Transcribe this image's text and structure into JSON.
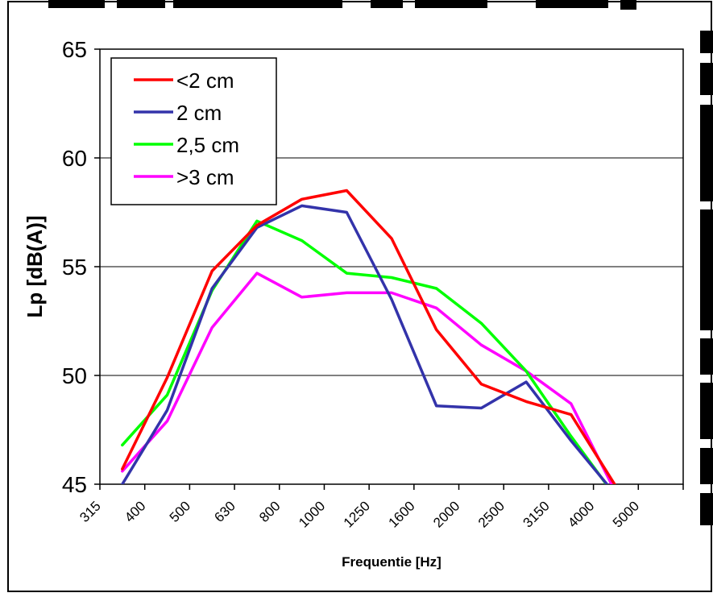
{
  "chart_data": {
    "type": "line",
    "title": "",
    "xlabel": "Frequentie [Hz]",
    "ylabel": "Lp [dB(A)]",
    "ylim": [
      45,
      65
    ],
    "yticks": [
      "45",
      "50",
      "55",
      "60",
      "65"
    ],
    "categories": [
      "315",
      "400",
      "500",
      "630",
      "800",
      "1000",
      "1250",
      "1600",
      "2000",
      "2500",
      "3150",
      "4000",
      "5000"
    ],
    "grid": "horizontal",
    "legend_position": "top-left",
    "series": [
      {
        "name": "<2 cm",
        "color": "#ff0000",
        "values": [
          45.7,
          49.9,
          54.8,
          56.9,
          58.1,
          58.5,
          56.3,
          52.1,
          49.6,
          48.8,
          48.2,
          44.9,
          null
        ]
      },
      {
        "name": "2 cm",
        "color": "#3333aa",
        "values": [
          45.0,
          48.4,
          54.0,
          56.8,
          57.8,
          57.5,
          53.5,
          48.6,
          48.5,
          49.7,
          47.0,
          44.5,
          null
        ]
      },
      {
        "name": "2,5 cm",
        "color": "#00ff00",
        "values": [
          46.8,
          49.1,
          53.9,
          57.1,
          56.2,
          54.7,
          54.5,
          54.0,
          52.4,
          50.2,
          47.2,
          44.4,
          null
        ]
      },
      {
        "name": ">3 cm",
        "color": "#ff00ff",
        "values": [
          45.6,
          47.9,
          52.2,
          54.7,
          53.6,
          53.8,
          53.8,
          53.1,
          51.4,
          50.2,
          48.7,
          44.6,
          null
        ]
      }
    ]
  }
}
